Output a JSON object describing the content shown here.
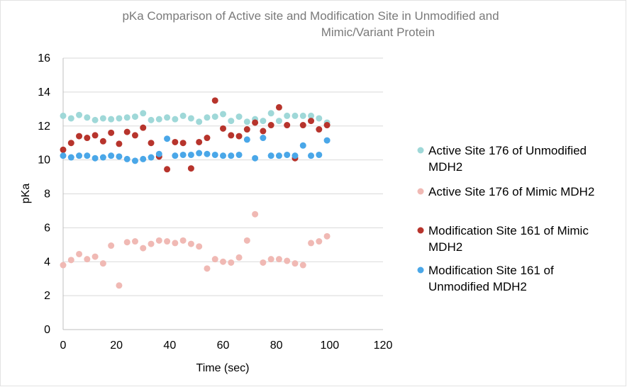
{
  "chart_data": {
    "type": "scatter",
    "title_lines": [
      "pKa Comparison of Active site and Modification Site in Unmodified and",
      "Mimic/Variant Protein"
    ],
    "xlabel": "Time (sec)",
    "ylabel": "pKa",
    "xlim": [
      0,
      120
    ],
    "ylim": [
      0,
      16
    ],
    "x_ticks": [
      "0",
      "20",
      "40",
      "60",
      "80",
      "100",
      "120"
    ],
    "y_ticks": [
      "0",
      "2",
      "4",
      "6",
      "8",
      "10",
      "12",
      "14",
      "16"
    ],
    "grid": "horizontal",
    "legend_position": "right",
    "series": [
      {
        "name": "Active Site 176 of Unmodified MDH2",
        "legend_lines": [
          "Active Site 176 of Unmodified",
          "MDH2"
        ],
        "color": "#9fd8d8",
        "points": [
          [
            0,
            12.6
          ],
          [
            3,
            12.45
          ],
          [
            6,
            12.65
          ],
          [
            9,
            12.5
          ],
          [
            12,
            12.35
          ],
          [
            15,
            12.45
          ],
          [
            18,
            12.4
          ],
          [
            21,
            12.45
          ],
          [
            24,
            12.5
          ],
          [
            27,
            12.55
          ],
          [
            30,
            12.75
          ],
          [
            33,
            12.35
          ],
          [
            36,
            12.4
          ],
          [
            39,
            12.5
          ],
          [
            42,
            12.4
          ],
          [
            45,
            12.6
          ],
          [
            48,
            12.45
          ],
          [
            51,
            12.25
          ],
          [
            54,
            12.5
          ],
          [
            57,
            12.55
          ],
          [
            60,
            12.7
          ],
          [
            63,
            12.3
          ],
          [
            66,
            12.55
          ],
          [
            69,
            12.25
          ],
          [
            72,
            12.4
          ],
          [
            75,
            12.3
          ],
          [
            78,
            12.75
          ],
          [
            81,
            12.3
          ],
          [
            84,
            12.6
          ],
          [
            87,
            12.6
          ],
          [
            90,
            12.6
          ],
          [
            93,
            12.6
          ],
          [
            96,
            12.45
          ],
          [
            99,
            12.2
          ]
        ]
      },
      {
        "name": "Active Site 176 of Mimic MDH2",
        "legend_lines": [
          "Active Site 176 of Mimic MDH2"
        ],
        "color": "#f0b9b4",
        "points": [
          [
            0,
            3.8
          ],
          [
            3,
            4.1
          ],
          [
            6,
            4.45
          ],
          [
            9,
            4.15
          ],
          [
            12,
            4.3
          ],
          [
            15,
            3.9
          ],
          [
            18,
            4.95
          ],
          [
            21,
            2.6
          ],
          [
            24,
            5.15
          ],
          [
            27,
            5.2
          ],
          [
            30,
            4.8
          ],
          [
            33,
            5.05
          ],
          [
            36,
            5.25
          ],
          [
            39,
            5.2
          ],
          [
            42,
            5.1
          ],
          [
            45,
            5.25
          ],
          [
            48,
            5.05
          ],
          [
            51,
            4.9
          ],
          [
            54,
            3.6
          ],
          [
            57,
            4.15
          ],
          [
            60,
            4.0
          ],
          [
            63,
            3.95
          ],
          [
            66,
            4.25
          ],
          [
            69,
            5.25
          ],
          [
            72,
            6.8
          ],
          [
            75,
            3.95
          ],
          [
            78,
            4.15
          ],
          [
            81,
            4.15
          ],
          [
            84,
            4.05
          ],
          [
            87,
            3.9
          ],
          [
            90,
            3.8
          ],
          [
            93,
            5.1
          ],
          [
            96,
            5.2
          ],
          [
            99,
            5.5
          ]
        ]
      },
      {
        "name": "Modification Site 161 of Mimic MDH2",
        "legend_lines": [
          "Modification Site 161 of Mimic",
          "MDH2"
        ],
        "color": "#b7342c",
        "points": [
          [
            0,
            10.6
          ],
          [
            3,
            11.0
          ],
          [
            6,
            11.4
          ],
          [
            9,
            11.3
          ],
          [
            12,
            11.45
          ],
          [
            15,
            11.1
          ],
          [
            18,
            11.6
          ],
          [
            21,
            10.95
          ],
          [
            24,
            11.65
          ],
          [
            27,
            11.45
          ],
          [
            30,
            11.9
          ],
          [
            33,
            11.0
          ],
          [
            36,
            10.2
          ],
          [
            39,
            9.45
          ],
          [
            42,
            11.05
          ],
          [
            45,
            11.0
          ],
          [
            48,
            9.5
          ],
          [
            51,
            11.05
          ],
          [
            54,
            11.3
          ],
          [
            57,
            13.5
          ],
          [
            60,
            11.85
          ],
          [
            63,
            11.45
          ],
          [
            66,
            11.4
          ],
          [
            69,
            11.8
          ],
          [
            72,
            12.2
          ],
          [
            75,
            11.7
          ],
          [
            78,
            12.05
          ],
          [
            81,
            13.1
          ],
          [
            84,
            12.05
          ],
          [
            87,
            10.1
          ],
          [
            90,
            12.05
          ],
          [
            93,
            12.3
          ],
          [
            96,
            11.8
          ],
          [
            99,
            12.05
          ]
        ]
      },
      {
        "name": "Modification Site 161 of Unmodified MDH2",
        "legend_lines": [
          "Modification Site 161 of",
          "Unmodified MDH2"
        ],
        "color": "#4aa7e8",
        "points": [
          [
            0,
            10.25
          ],
          [
            3,
            10.15
          ],
          [
            6,
            10.25
          ],
          [
            9,
            10.25
          ],
          [
            12,
            10.1
          ],
          [
            15,
            10.15
          ],
          [
            18,
            10.25
          ],
          [
            21,
            10.2
          ],
          [
            24,
            10.05
          ],
          [
            27,
            9.95
          ],
          [
            30,
            10.05
          ],
          [
            33,
            10.15
          ],
          [
            36,
            10.35
          ],
          [
            39,
            11.25
          ],
          [
            42,
            10.25
          ],
          [
            45,
            10.3
          ],
          [
            48,
            10.3
          ],
          [
            51,
            10.4
          ],
          [
            54,
            10.35
          ],
          [
            57,
            10.3
          ],
          [
            60,
            10.25
          ],
          [
            63,
            10.25
          ],
          [
            66,
            10.3
          ],
          [
            69,
            11.2
          ],
          [
            72,
            10.1
          ],
          [
            75,
            11.3
          ],
          [
            78,
            10.25
          ],
          [
            81,
            10.25
          ],
          [
            84,
            10.3
          ],
          [
            87,
            10.25
          ],
          [
            90,
            10.85
          ],
          [
            93,
            10.25
          ],
          [
            96,
            10.3
          ],
          [
            99,
            11.15
          ]
        ]
      }
    ]
  }
}
